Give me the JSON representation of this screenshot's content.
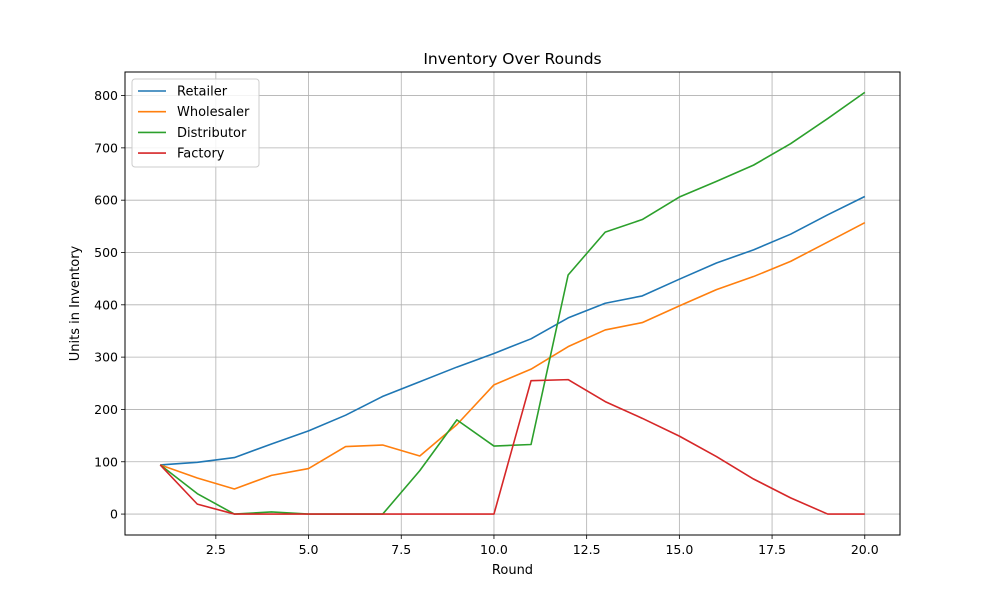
{
  "chart_data": {
    "type": "line",
    "title": "Inventory Over Rounds",
    "xlabel": "Round",
    "ylabel": "Units in Inventory",
    "xlim": [
      0.05,
      20.95
    ],
    "ylim": [
      -40,
      845
    ],
    "xticks": [
      2.5,
      5.0,
      7.5,
      10.0,
      12.5,
      15.0,
      17.5,
      20.0
    ],
    "xtick_labels": [
      "2.5",
      "5.0",
      "7.5",
      "10.0",
      "12.5",
      "15.0",
      "17.5",
      "20.0"
    ],
    "yticks": [
      0,
      100,
      200,
      300,
      400,
      500,
      600,
      700,
      800
    ],
    "ytick_labels": [
      "0",
      "100",
      "200",
      "300",
      "400",
      "500",
      "600",
      "700",
      "800"
    ],
    "grid": true,
    "legend_position": "top-left",
    "x": [
      1,
      2,
      3,
      4,
      5,
      6,
      7,
      8,
      9,
      10,
      11,
      12,
      13,
      14,
      15,
      16,
      17,
      18,
      19,
      20
    ],
    "series": [
      {
        "name": "Retailer",
        "color": "#1f77b4",
        "values": [
          94,
          99,
          108,
          134,
          159,
          189,
          225,
          253,
          281,
          307,
          335,
          375,
          403,
          417,
          449,
          480,
          505,
          535,
          572,
          607
        ]
      },
      {
        "name": "Wholesaler",
        "color": "#ff7f0e",
        "values": [
          94,
          69,
          48,
          74,
          87,
          129,
          132,
          111,
          171,
          247,
          277,
          320,
          352,
          366,
          398,
          429,
          454,
          483,
          520,
          557
        ]
      },
      {
        "name": "Distributor",
        "color": "#2ca02c",
        "values": [
          94,
          39,
          0,
          4,
          0,
          0,
          0,
          83,
          180,
          130,
          133,
          457,
          539,
          563,
          606,
          636,
          667,
          708,
          756,
          806
        ]
      },
      {
        "name": "Factory",
        "color": "#d62728",
        "values": [
          94,
          19,
          0,
          0,
          0,
          0,
          0,
          0,
          0,
          0,
          255,
          257,
          215,
          183,
          149,
          110,
          67,
          31,
          0,
          0
        ]
      }
    ]
  }
}
